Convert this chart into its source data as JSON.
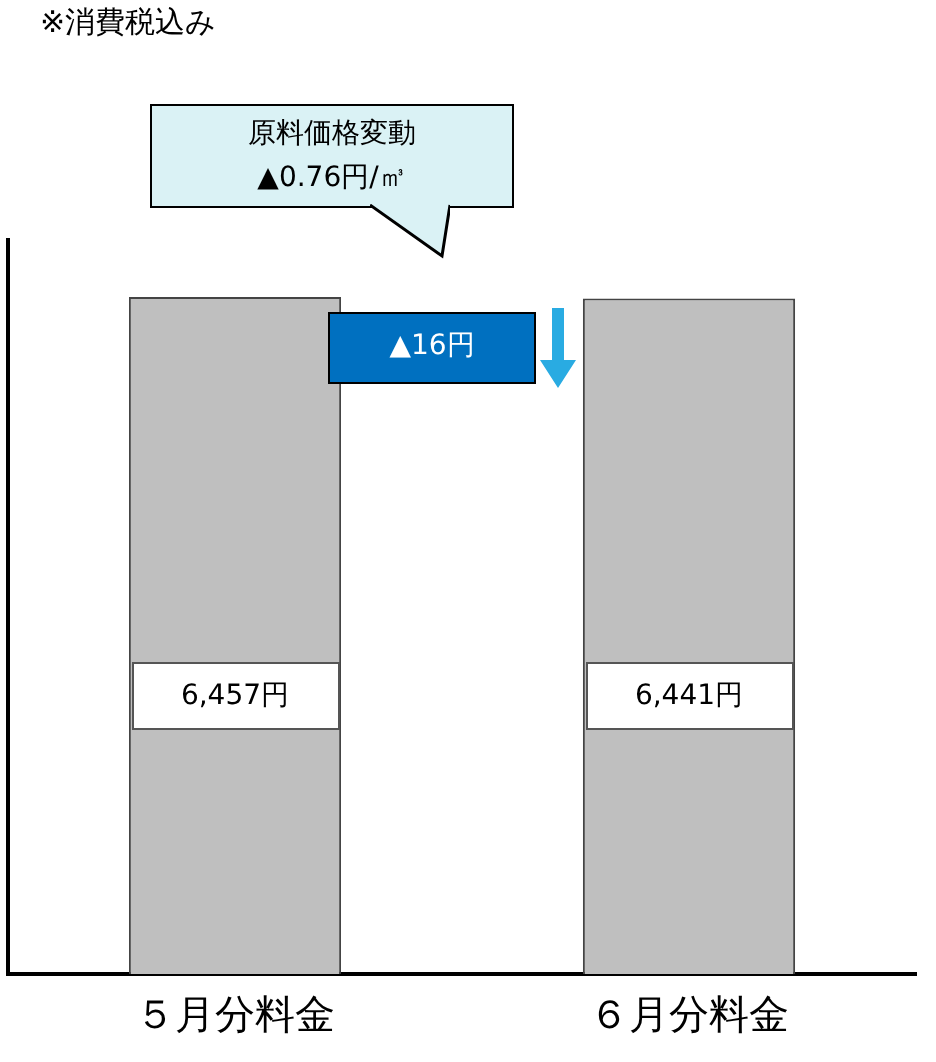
{
  "chart_data": {
    "type": "bar",
    "categories": [
      "５月分料金",
      "６月分料金"
    ],
    "values": [
      6457,
      6441
    ],
    "color": "#bfbfbf",
    "value_labels": [
      "6,457円",
      "6,441円"
    ],
    "tick_labels": "x",
    "grid": false,
    "legend": false,
    "annotations": [
      "※消費税込み",
      "原料価格変動\n▲0.76円/㎥",
      "▲16円"
    ]
  }
}
